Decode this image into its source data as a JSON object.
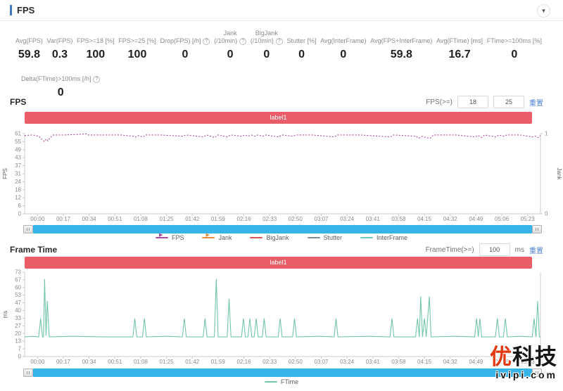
{
  "colors": {
    "accent_blue": "#4178be",
    "link_blue": "#4c7fd1",
    "banner_red": "#e85d68",
    "scrollbar_blue": "#36b4e8",
    "watermark_red": "#e23a10"
  },
  "header": {
    "title": "FPS",
    "collapse_icon": "▼"
  },
  "stats": [
    {
      "line1": "Avg(FPS)",
      "value": "59.8"
    },
    {
      "line1": "Var(FPS)",
      "value": "0.3"
    },
    {
      "line1": "FPS>=18 [%]",
      "value": "100"
    },
    {
      "line1": "FPS>=25 [%]",
      "value": "100"
    },
    {
      "line1": "Drop(FPS) [/h]",
      "value": "0",
      "help": true
    },
    {
      "line1": "Jank",
      "line2": "(/10min)",
      "value": "0",
      "help": true
    },
    {
      "line1": "BigJank",
      "line2": "(/10min)",
      "value": "0",
      "help": true
    },
    {
      "line1": "Stutter [%]",
      "value": "0"
    },
    {
      "line1": "Avg(InterFrame)",
      "value": "0"
    },
    {
      "line1": "Avg(FPS+InterFrame)",
      "value": "59.8"
    },
    {
      "line1": "Avg(FTime) [ms]",
      "value": "16.7"
    },
    {
      "line1": "FTime>=100ms [%]",
      "value": "0"
    }
  ],
  "delta_stat": {
    "label": "Delta(FTime)>100ms [/h]",
    "value": "0",
    "help": true
  },
  "fps_section": {
    "title": "FPS",
    "filter_label": "FPS(>=)",
    "input1": "18",
    "input2": "25",
    "reset_label": "重置",
    "banner": "label1"
  },
  "ftime_section": {
    "title": "Frame Time",
    "filter_label": "FrameTime(>=)",
    "input1": "100",
    "unit": "ms",
    "reset_label": "重置",
    "banner": "label1"
  },
  "watermark": {
    "brand_red": "优",
    "brand_black": "科技",
    "site": "ivipi.com"
  },
  "chart_data": [
    {
      "type": "line",
      "title": "FPS",
      "x_labels": [
        "00:00",
        "00:17",
        "00:34",
        "00:51",
        "01:08",
        "01:25",
        "01:42",
        "01:59",
        "02:16",
        "02:33",
        "02:50",
        "03:07",
        "03:24",
        "03:41",
        "03:58",
        "04:15",
        "04:32",
        "04:49",
        "05:06",
        "05:23"
      ],
      "x_max_sec": 323,
      "y_axis": {
        "label": "FPS",
        "ticks": [
          "0",
          "6",
          "12",
          "18",
          "24",
          "31",
          "37",
          "43",
          "49",
          "55",
          "61"
        ],
        "max": 61
      },
      "y2_axis": {
        "label": "Jank",
        "ticks": [
          "0",
          "1"
        ],
        "max": 1
      },
      "legend": [
        {
          "name": "FPS",
          "color": "#a84a9e",
          "symbol": "arrow"
        },
        {
          "name": "Jank",
          "color": "#e2903e",
          "symbol": "arrow"
        },
        {
          "name": "BigJank",
          "color": "#d95757",
          "symbol": "line"
        },
        {
          "name": "Stutter",
          "color": "#7d8f9b",
          "symbol": "line"
        },
        {
          "name": "InterFrame",
          "color": "#6fc6c2",
          "symbol": "line"
        }
      ],
      "series": [
        {
          "name": "FPS",
          "color": "#a84a9e",
          "dash": true,
          "points": [
            [
              0,
              59.5
            ],
            [
              5,
              60
            ],
            [
              9,
              59
            ],
            [
              10.5,
              57
            ],
            [
              12.5,
              55
            ],
            [
              13.5,
              57
            ],
            [
              14.5,
              55.5
            ],
            [
              16,
              58
            ],
            [
              18,
              60
            ],
            [
              25,
              60
            ],
            [
              36,
              60.5
            ],
            [
              38,
              61
            ],
            [
              40,
              60
            ],
            [
              60,
              60
            ],
            [
              68,
              59
            ],
            [
              69.5,
              58.5
            ],
            [
              71,
              59.5
            ],
            [
              74,
              58.5
            ],
            [
              76,
              60
            ],
            [
              85,
              60
            ],
            [
              99,
              59
            ],
            [
              101,
              60
            ],
            [
              112,
              58.5
            ],
            [
              114,
              60
            ],
            [
              119,
              58
            ],
            [
              121,
              60
            ],
            [
              127,
              58.5
            ],
            [
              129,
              60
            ],
            [
              136,
              59
            ],
            [
              138,
              60
            ],
            [
              140,
              59
            ],
            [
              142,
              60
            ],
            [
              144,
              59
            ],
            [
              146,
              60
            ],
            [
              149,
              59
            ],
            [
              151,
              60
            ],
            [
              159,
              58.5
            ],
            [
              161,
              60
            ],
            [
              168,
              59
            ],
            [
              170,
              60
            ],
            [
              180,
              60
            ],
            [
              194,
              58.5
            ],
            [
              196,
              60
            ],
            [
              210,
              60
            ],
            [
              229,
              58.5
            ],
            [
              231,
              60
            ],
            [
              245,
              59
            ],
            [
              247,
              57.5
            ],
            [
              249,
              59
            ],
            [
              251,
              58
            ],
            [
              254,
              57.5
            ],
            [
              256,
              60
            ],
            [
              270,
              60
            ],
            [
              282,
              58.5
            ],
            [
              284,
              59.5
            ],
            [
              286,
              58
            ],
            [
              288,
              60
            ],
            [
              295,
              58.5
            ],
            [
              297,
              60
            ],
            [
              300,
              59
            ],
            [
              302,
              60
            ],
            [
              310,
              60
            ],
            [
              318,
              58.5
            ],
            [
              320,
              59
            ],
            [
              321.5,
              58
            ],
            [
              323,
              59.5
            ]
          ]
        }
      ],
      "series_flat_zero": [
        "Jank",
        "BigJank",
        "Stutter",
        "InterFrame"
      ]
    },
    {
      "type": "line",
      "title": "Frame Time",
      "x_labels": [
        "00:00",
        "00:17",
        "00:34",
        "00:51",
        "01:08",
        "01:25",
        "01:42",
        "01:59",
        "02:16",
        "02:33",
        "02:50",
        "03:07",
        "03:24",
        "03:41",
        "03:58",
        "04:15",
        "04:32",
        "04:49",
        "05:06",
        "05:23"
      ],
      "x_max_sec": 323,
      "y_axis": {
        "label": "ms",
        "ticks": [
          "0",
          "7",
          "13",
          "20",
          "27",
          "33",
          "40",
          "47",
          "53",
          "60",
          "67",
          "73"
        ],
        "max": 73
      },
      "legend": [
        {
          "name": "FTime",
          "color": "#74c5ad",
          "symbol": "line"
        }
      ],
      "series": [
        {
          "name": "FTime",
          "color": "#74c5ad",
          "dash": false,
          "points": [
            [
              0,
              17
            ],
            [
              5,
              17.5
            ],
            [
              8.8,
              17
            ],
            [
              10,
              33
            ],
            [
              11.2,
              17
            ],
            [
              11.8,
              17
            ],
            [
              12.5,
              67
            ],
            [
              13.4,
              18
            ],
            [
              14.2,
              48
            ],
            [
              15.4,
              17
            ],
            [
              30,
              17.5
            ],
            [
              50,
              17
            ],
            [
              67.8,
              17
            ],
            [
              69,
              33
            ],
            [
              70.2,
              17
            ],
            [
              73.8,
              17
            ],
            [
              75,
              33
            ],
            [
              76.2,
              17
            ],
            [
              90,
              17.5
            ],
            [
              98.8,
              17
            ],
            [
              100,
              33
            ],
            [
              101.2,
              17
            ],
            [
              111.8,
              17
            ],
            [
              113,
              33
            ],
            [
              114.2,
              17
            ],
            [
              118.8,
              17
            ],
            [
              120,
              67
            ],
            [
              121.2,
              17
            ],
            [
              126.8,
              17
            ],
            [
              128,
              50
            ],
            [
              129.2,
              17
            ],
            [
              135.8,
              17
            ],
            [
              137,
              33
            ],
            [
              138.2,
              17
            ],
            [
              139.8,
              17
            ],
            [
              141,
              33
            ],
            [
              142.2,
              17
            ],
            [
              143.8,
              17
            ],
            [
              145,
              33
            ],
            [
              146.2,
              17
            ],
            [
              148.8,
              17
            ],
            [
              150,
              33
            ],
            [
              151.2,
              17
            ],
            [
              158.8,
              17
            ],
            [
              160,
              33
            ],
            [
              161.2,
              17
            ],
            [
              167.8,
              17
            ],
            [
              169,
              33
            ],
            [
              170.2,
              17
            ],
            [
              185,
              17.5
            ],
            [
              193.8,
              17
            ],
            [
              195,
              33
            ],
            [
              196.2,
              17
            ],
            [
              215,
              17.5
            ],
            [
              228.8,
              17
            ],
            [
              230,
              33
            ],
            [
              231.2,
              17
            ],
            [
              244.8,
              17
            ],
            [
              246,
              33
            ],
            [
              247.1,
              17
            ],
            [
              248,
              52
            ],
            [
              249.1,
              17
            ],
            [
              250.4,
              33
            ],
            [
              251.5,
              17
            ],
            [
              253.4,
              52
            ],
            [
              254.5,
              17
            ],
            [
              270,
              17.5
            ],
            [
              281.8,
              17
            ],
            [
              283,
              33
            ],
            [
              284.1,
              17
            ],
            [
              285,
              33
            ],
            [
              286.2,
              17
            ],
            [
              294.8,
              17
            ],
            [
              296,
              33
            ],
            [
              297.2,
              17
            ],
            [
              299.8,
              17
            ],
            [
              301,
              33
            ],
            [
              302.2,
              17
            ],
            [
              310,
              17.5
            ],
            [
              317.8,
              17
            ],
            [
              319,
              33
            ],
            [
              320.2,
              17
            ],
            [
              321.2,
              48
            ],
            [
              322.3,
              17
            ],
            [
              323,
              17
            ]
          ]
        }
      ]
    }
  ]
}
